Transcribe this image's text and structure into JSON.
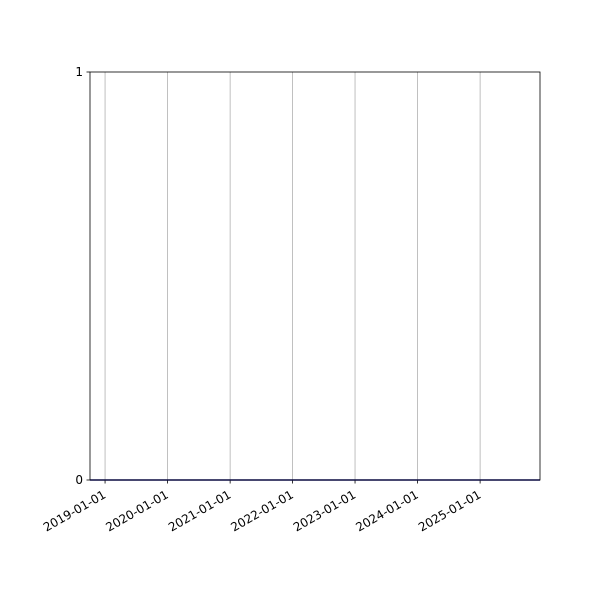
{
  "chart_data": {
    "type": "line",
    "title": "",
    "xlabel": "",
    "ylabel": "",
    "x_axis_type": "date",
    "xlim": [
      "2018-10-05",
      "2025-12-17"
    ],
    "ylim": [
      0,
      1
    ],
    "x_ticks": [
      "2019-01-01",
      "2020-01-01",
      "2021-01-01",
      "2022-01-01",
      "2023-01-01",
      "2024-01-01",
      "2025-01-01"
    ],
    "y_ticks": [
      "0",
      "1"
    ],
    "grid": "x-only",
    "legend": "none",
    "series": [
      {
        "color": "#1a1a8c",
        "x": [
          "2018-10-05",
          "2025-12-17"
        ],
        "y": [
          0,
          0
        ]
      }
    ],
    "colors": {
      "grid": "#b0b0b0",
      "axes": "#000000"
    }
  }
}
